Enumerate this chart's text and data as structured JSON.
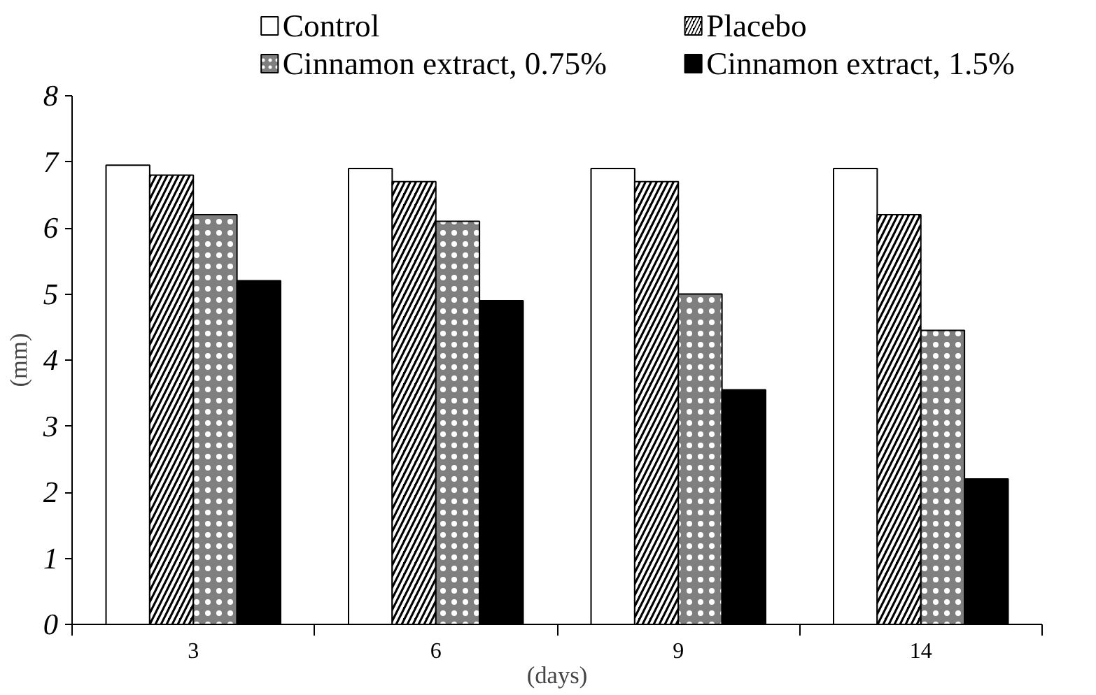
{
  "chart_data": {
    "type": "bar",
    "categories": [
      "3",
      "6",
      "9",
      "14"
    ],
    "xlabel": "(days)",
    "ylabel": "(mm)",
    "ylim": [
      0,
      8
    ],
    "yticks": [
      0,
      1,
      2,
      3,
      4,
      5,
      6,
      7,
      8
    ],
    "grid": false,
    "legend": "top",
    "series": [
      {
        "name": "Control",
        "color": "#ffffff",
        "values": [
          6.95,
          6.9,
          6.9,
          6.9
        ]
      },
      {
        "name": "Placebo",
        "color": "#000000",
        "values": [
          6.8,
          6.7,
          6.7,
          6.2
        ]
      },
      {
        "name": "Cinnamon extract, 0.75%",
        "color": "#7f7f7f",
        "values": [
          6.2,
          6.1,
          5.0,
          4.45
        ]
      },
      {
        "name": "Cinnamon extract, 1.5%",
        "color": "#000000",
        "values": [
          5.2,
          4.9,
          3.55,
          2.2
        ]
      }
    ]
  }
}
